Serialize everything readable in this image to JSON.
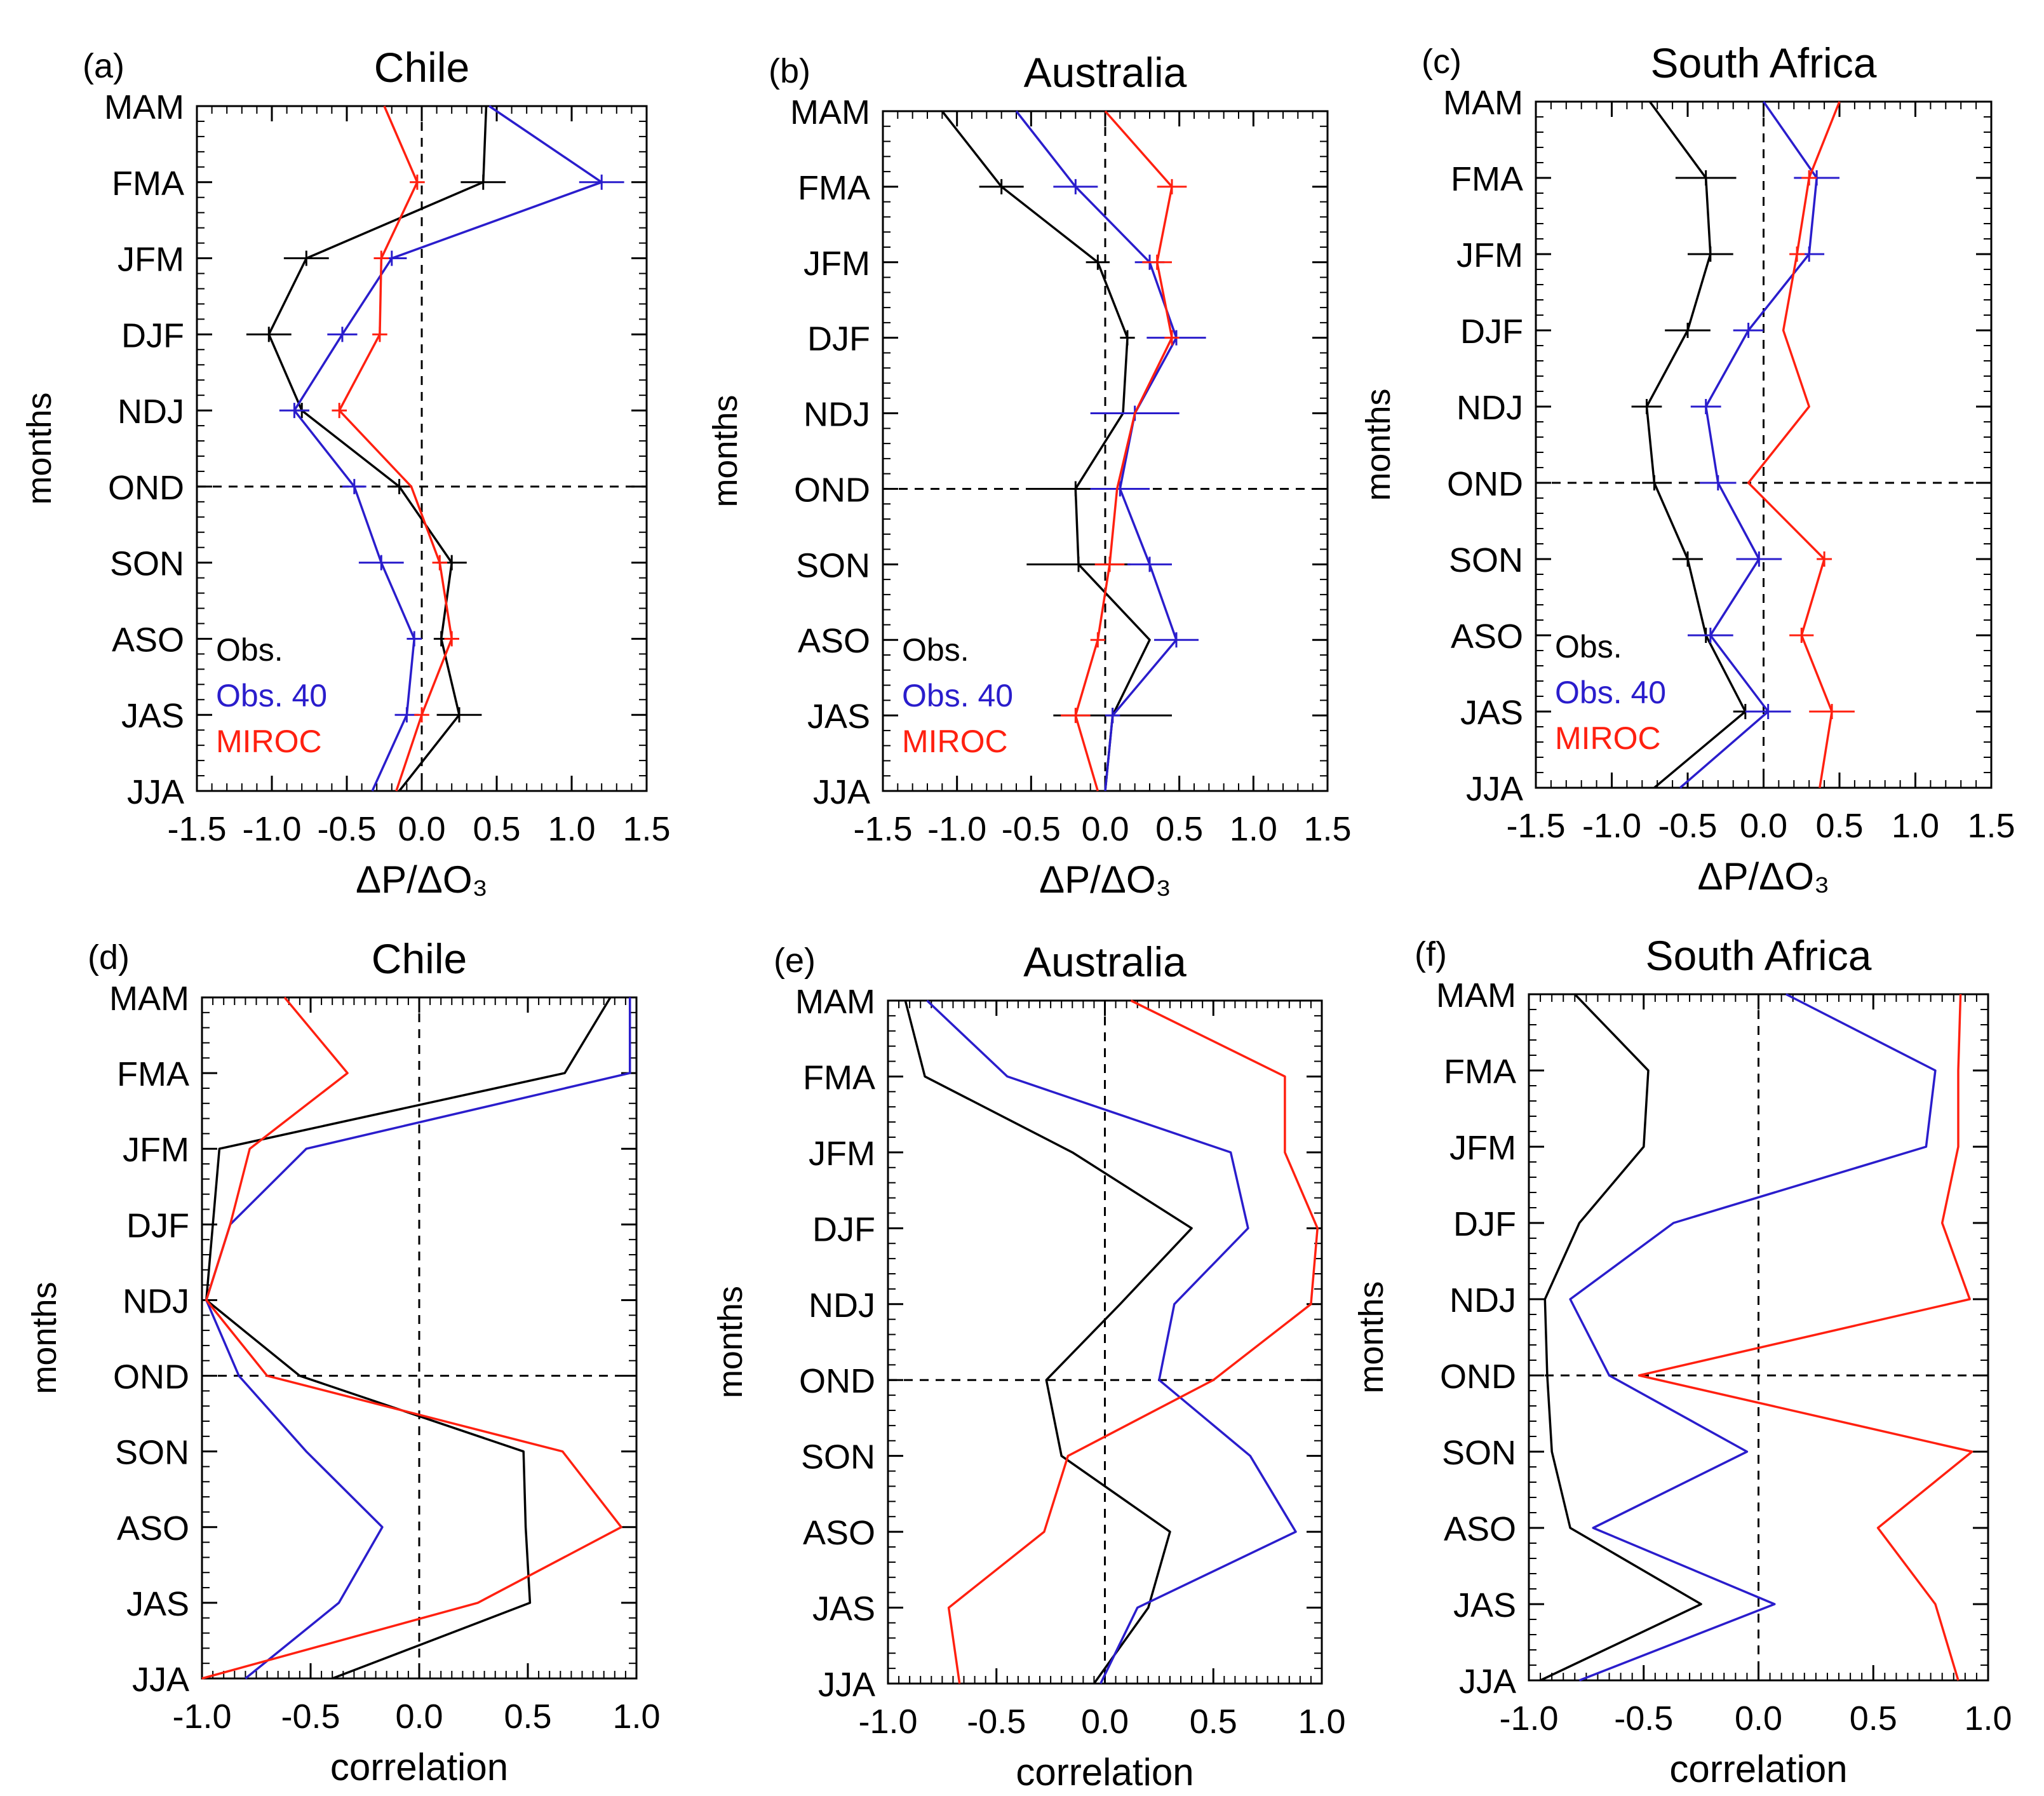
{
  "colors": {
    "obs": "#000000",
    "obs40": "#2a1dcc",
    "miroc": "#ff2010"
  },
  "chart_data": [
    {
      "panel_label": "(a)",
      "title": "Chile",
      "type": "line",
      "ylabel": "months",
      "xlabel": "ΔP/ΔO₃",
      "xlim": [
        -1.5,
        1.5
      ],
      "xticks": [
        "-1.5",
        "-1.0",
        "-0.5",
        "0.0",
        "0.5",
        "1.0",
        "1.5"
      ],
      "months": [
        "MAM",
        "FMA",
        "JFM",
        "DJF",
        "NDJ",
        "OND",
        "SON",
        "ASO",
        "JAS",
        "JJA"
      ],
      "legend": [
        "Obs.",
        "Obs. 40",
        "MIROC"
      ],
      "error_bars": true,
      "series": [
        {
          "name": "Obs.",
          "values": [
            0.43,
            0.41,
            -0.77,
            -1.02,
            -0.8,
            -0.15,
            0.2,
            0.13,
            0.25,
            -0.15
          ],
          "err": [
            0,
            0.15,
            0.15,
            0.15,
            0.05,
            0.05,
            0.1,
            0.05,
            0.15,
            0
          ]
        },
        {
          "name": "Obs. 40",
          "values": [
            0.45,
            1.2,
            -0.2,
            -0.53,
            -0.85,
            -0.45,
            -0.27,
            -0.05,
            -0.1,
            -0.33
          ],
          "err": [
            0,
            0.15,
            0.1,
            0.1,
            0.1,
            0.08,
            0.15,
            0.05,
            0.08,
            0
          ]
        },
        {
          "name": "MIROC",
          "values": [
            -0.25,
            -0.03,
            -0.27,
            -0.28,
            -0.55,
            -0.07,
            0.12,
            0.2,
            0,
            -0.17
          ],
          "err": [
            0,
            0.05,
            0.05,
            0.05,
            0.05,
            0,
            0.05,
            0.05,
            0.05,
            0
          ]
        }
      ]
    },
    {
      "panel_label": "(b)",
      "title": "Australia",
      "type": "line",
      "ylabel": "months",
      "xlabel": "ΔP/ΔO₃",
      "xlim": [
        -1.5,
        1.5
      ],
      "xticks": [
        "-1.5",
        "-1.0",
        "-0.5",
        "0.0",
        "0.5",
        "1.0",
        "1.5"
      ],
      "months": [
        "MAM",
        "FMA",
        "JFM",
        "DJF",
        "NDJ",
        "OND",
        "SON",
        "ASO",
        "JAS",
        "JJA"
      ],
      "legend": [
        "Obs.",
        "Obs. 40",
        "MIROC"
      ],
      "error_bars": true,
      "series": [
        {
          "name": "Obs.",
          "values": [
            -1.1,
            -0.7,
            -0.05,
            0.15,
            0.12,
            -0.2,
            -0.18,
            0.3,
            0.05,
            0
          ],
          "err": [
            0,
            0.15,
            0.08,
            0.05,
            0,
            0.3,
            0.35,
            0,
            0.4,
            0
          ]
        },
        {
          "name": "Obs. 40",
          "values": [
            -0.6,
            -0.2,
            0.3,
            0.48,
            0.2,
            0.1,
            0.3,
            0.48,
            0.05,
            0
          ],
          "err": [
            0,
            0.15,
            0.1,
            0.2,
            0.3,
            0.2,
            0.15,
            0.15,
            0.05,
            0
          ]
        },
        {
          "name": "MIROC",
          "values": [
            0,
            0.45,
            0.35,
            0.45,
            0.2,
            0.08,
            0.03,
            -0.05,
            -0.2,
            -0.05
          ],
          "err": [
            0,
            0.1,
            0.1,
            0.05,
            0,
            0,
            0.1,
            0.05,
            0.1,
            0
          ]
        }
      ]
    },
    {
      "panel_label": "(c)",
      "title": "South Africa",
      "type": "line",
      "ylabel": "months",
      "xlabel": "ΔP/ΔO₃",
      "xlim": [
        -1.5,
        1.5
      ],
      "xticks": [
        "-1.5",
        "-1.0",
        "-0.5",
        "0.0",
        "0.5",
        "1.0",
        "1.5"
      ],
      "months": [
        "MAM",
        "FMA",
        "JFM",
        "DJF",
        "NDJ",
        "OND",
        "SON",
        "ASO",
        "JAS",
        "JJA"
      ],
      "legend": [
        "Obs.",
        "Obs. 40",
        "MIROC"
      ],
      "error_bars": true,
      "series": [
        {
          "name": "Obs.",
          "values": [
            -0.75,
            -0.38,
            -0.35,
            -0.5,
            -0.77,
            -0.72,
            -0.5,
            -0.38,
            -0.12,
            -0.72
          ],
          "err": [
            0,
            0.2,
            0.15,
            0.15,
            0.1,
            0.08,
            0.1,
            0.05,
            0.08,
            0
          ]
        },
        {
          "name": "Obs. 40",
          "values": [
            0,
            0.35,
            0.3,
            -0.1,
            -0.38,
            -0.3,
            -0.03,
            -0.35,
            0.03,
            -0.55
          ],
          "err": [
            0,
            0.15,
            0.1,
            0.1,
            0.1,
            0.12,
            0.15,
            0.15,
            0.15,
            0
          ]
        },
        {
          "name": "MIROC",
          "values": [
            0.5,
            0.3,
            0.22,
            0.13,
            0.3,
            -0.1,
            0.4,
            0.25,
            0.45,
            0.37
          ],
          "err": [
            0,
            0.05,
            0.05,
            0,
            0,
            0,
            0.05,
            0.08,
            0.15,
            0
          ]
        }
      ]
    },
    {
      "panel_label": "(d)",
      "title": "Chile",
      "type": "line",
      "ylabel": "months",
      "xlabel": "correlation",
      "xlim": [
        -1.0,
        1.0
      ],
      "xticks": [
        "-1.0",
        "-0.5",
        "0.0",
        "0.5",
        "1.0"
      ],
      "months": [
        "MAM",
        "FMA",
        "JFM",
        "DJF",
        "NDJ",
        "OND",
        "SON",
        "ASO",
        "JAS",
        "JJA"
      ],
      "error_bars": false,
      "series": [
        {
          "name": "Obs.",
          "values": [
            0.88,
            0.67,
            -0.92,
            -0.95,
            -0.98,
            -0.55,
            0.48,
            0.49,
            0.51,
            -0.4
          ]
        },
        {
          "name": "Obs. 40",
          "values": [
            0.97,
            0.97,
            -0.52,
            -0.87,
            -0.98,
            -0.83,
            -0.52,
            -0.17,
            -0.37,
            -0.8
          ]
        },
        {
          "name": "MIROC",
          "values": [
            -0.62,
            -0.33,
            -0.78,
            -0.87,
            -0.98,
            -0.7,
            0.66,
            0.93,
            0.27,
            -1.0
          ]
        }
      ]
    },
    {
      "panel_label": "(e)",
      "title": "Australia",
      "type": "line",
      "ylabel": "months",
      "xlabel": "correlation",
      "xlim": [
        -1.0,
        1.0
      ],
      "xticks": [
        "-1.0",
        "-0.5",
        "0.0",
        "0.5",
        "1.0"
      ],
      "months": [
        "MAM",
        "FMA",
        "JFM",
        "DJF",
        "NDJ",
        "OND",
        "SON",
        "ASO",
        "JAS",
        "JJA"
      ],
      "error_bars": false,
      "series": [
        {
          "name": "Obs.",
          "values": [
            -0.92,
            -0.83,
            -0.15,
            0.4,
            0.07,
            -0.27,
            -0.2,
            0.3,
            0.2,
            -0.05
          ]
        },
        {
          "name": "Obs. 40",
          "values": [
            -0.82,
            -0.45,
            0.58,
            0.66,
            0.32,
            0.25,
            0.67,
            0.88,
            0.15,
            -0.02
          ]
        },
        {
          "name": "MIROC",
          "values": [
            0.12,
            0.83,
            0.83,
            0.98,
            0.95,
            0.5,
            -0.17,
            -0.28,
            -0.72,
            -0.67
          ]
        }
      ]
    },
    {
      "panel_label": "(f)",
      "title": "South Africa",
      "type": "line",
      "ylabel": "months",
      "xlabel": "correlation",
      "xlim": [
        -1.0,
        1.0
      ],
      "xticks": [
        "-1.0",
        "-0.5",
        "0.0",
        "0.5",
        "1.0"
      ],
      "months": [
        "MAM",
        "FMA",
        "JFM",
        "DJF",
        "NDJ",
        "OND",
        "SON",
        "ASO",
        "JAS",
        "JJA"
      ],
      "error_bars": false,
      "series": [
        {
          "name": "Obs.",
          "values": [
            -0.8,
            -0.48,
            -0.5,
            -0.78,
            -0.93,
            -0.92,
            -0.9,
            -0.82,
            -0.25,
            -0.95
          ]
        },
        {
          "name": "Obs. 40",
          "values": [
            0.12,
            0.77,
            0.73,
            -0.37,
            -0.82,
            -0.65,
            -0.05,
            -0.72,
            0.07,
            -0.78
          ]
        },
        {
          "name": "MIROC",
          "values": [
            0.88,
            0.87,
            0.87,
            0.8,
            0.92,
            -0.52,
            0.93,
            0.52,
            0.77,
            0.87
          ]
        }
      ]
    }
  ]
}
